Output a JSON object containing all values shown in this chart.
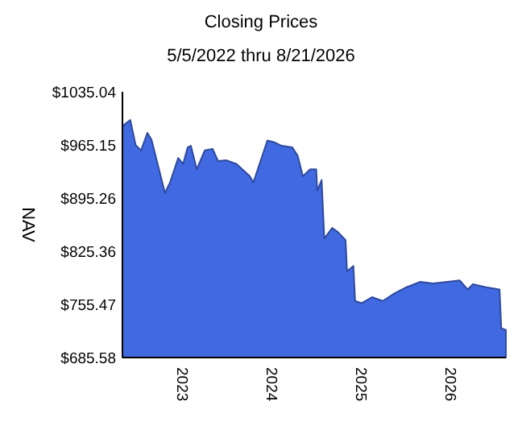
{
  "chart_data": {
    "type": "area",
    "title": "Closing Prices",
    "subtitle": "5/5/2022 thru 8/21/2026",
    "ylabel": "NAV",
    "x": [
      "2022-05-05",
      "2022-06-06",
      "2022-06-28",
      "2022-07-20",
      "2022-08-15",
      "2022-09-01",
      "2022-10-04",
      "2022-10-26",
      "2022-11-16",
      "2022-12-19",
      "2023-01-08",
      "2023-01-27",
      "2023-02-09",
      "2023-03-05",
      "2023-04-07",
      "2023-05-09",
      "2023-05-31",
      "2023-07-03",
      "2023-08-15",
      "2023-10-08",
      "2023-10-23",
      "2023-11-21",
      "2023-12-19",
      "2024-01-14",
      "2024-02-16",
      "2024-03-30",
      "2024-04-21",
      "2024-05-12",
      "2024-06-10",
      "2024-07-06",
      "2024-07-10",
      "2024-07-28",
      "2024-08-08",
      "2024-09-09",
      "2024-10-01",
      "2024-11-03",
      "2024-11-09",
      "2024-12-05",
      "2024-12-12",
      "2025-01-07",
      "2025-02-19",
      "2025-04-04",
      "2025-05-17",
      "2025-07-10",
      "2025-09-03",
      "2025-10-27",
      "2026-02-13",
      "2026-03-18",
      "2026-04-08",
      "2026-06-01",
      "2026-07-26",
      "2026-08-02",
      "2026-08-21"
    ],
    "series": [
      {
        "color": "#4169e1",
        "values": [
          990,
          998,
          965,
          958,
          981,
          972,
          930,
          902,
          916,
          948,
          940,
          962,
          964,
          933,
          958,
          960,
          944,
          945,
          940,
          924,
          916,
          944,
          971,
          969,
          964,
          962,
          951,
          924,
          933,
          933,
          905,
          919,
          842,
          856,
          851,
          840,
          799,
          806,
          760,
          757,
          765,
          760,
          769,
          778,
          785,
          783,
          787,
          775,
          782,
          778,
          775,
          724,
          722
        ]
      }
    ],
    "xlim": [
      "2022-05-05",
      "2026-08-21"
    ],
    "xticks": [
      {
        "value": "2023-01-01",
        "label": "2023"
      },
      {
        "value": "2024-01-01",
        "label": "2024"
      },
      {
        "value": "2025-01-01",
        "label": "2025"
      },
      {
        "value": "2026-01-01",
        "label": "2026"
      }
    ],
    "ylim": [
      685.58,
      1035.04
    ],
    "yticks": [
      {
        "value": 685.58,
        "label": "$685.58"
      },
      {
        "value": 755.47,
        "label": "$755.47"
      },
      {
        "value": 825.36,
        "label": "$825.36"
      },
      {
        "value": 895.26,
        "label": "$895.26"
      },
      {
        "value": 965.15,
        "label": "$965.15"
      },
      {
        "value": 1035.04,
        "label": "$1035.04"
      }
    ]
  }
}
